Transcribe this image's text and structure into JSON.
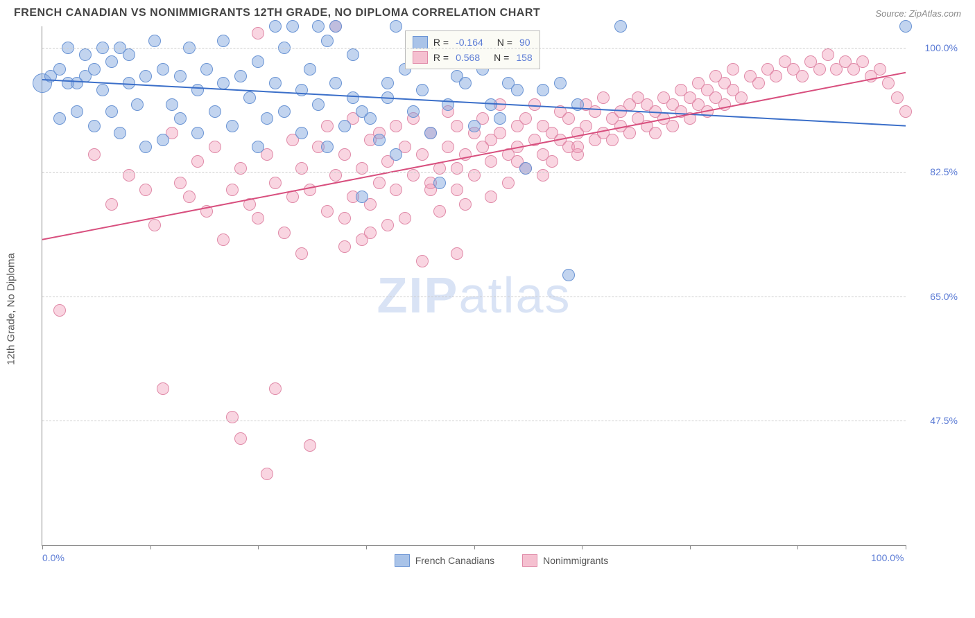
{
  "header": {
    "title": "FRENCH CANADIAN VS NONIMMIGRANTS 12TH GRADE, NO DIPLOMA CORRELATION CHART",
    "source_label": "Source:",
    "source_value": "ZipAtlas.com"
  },
  "chart": {
    "type": "scatter",
    "ylabel": "12th Grade, No Diploma",
    "xlim": [
      0,
      100
    ],
    "ylim": [
      30,
      103
    ],
    "xticks": [
      0,
      12.5,
      25,
      37.5,
      50,
      62.5,
      75,
      87.5,
      100
    ],
    "xtick_labels": {
      "0": "0.0%",
      "100": "100.0%"
    },
    "yticks": [
      47.5,
      65.0,
      82.5,
      100.0
    ],
    "ytick_labels": [
      "47.5%",
      "65.0%",
      "82.5%",
      "100.0%"
    ],
    "background_color": "#ffffff",
    "grid_color": "#cccccc",
    "axis_color": "#888888",
    "series": [
      {
        "name": "French Canadians",
        "color_fill": "rgba(120,160,220,0.45)",
        "color_stroke": "#6a94d4",
        "swatch_fill": "#a9c3e8",
        "swatch_border": "#6a94d4",
        "R": "-0.164",
        "N": "90",
        "marker_radius": 9,
        "trend": {
          "y_at_x0": 95.5,
          "y_at_x100": 89.0,
          "color": "#3b6fc9",
          "width": 2
        },
        "points": [
          [
            0,
            95,
            14
          ],
          [
            1,
            96
          ],
          [
            2,
            97
          ],
          [
            2,
            90
          ],
          [
            3,
            95
          ],
          [
            3,
            100
          ],
          [
            4,
            95
          ],
          [
            4,
            91
          ],
          [
            5,
            96
          ],
          [
            5,
            99
          ],
          [
            6,
            97
          ],
          [
            6,
            89
          ],
          [
            7,
            94
          ],
          [
            7,
            100
          ],
          [
            8,
            98
          ],
          [
            8,
            91
          ],
          [
            9,
            100
          ],
          [
            9,
            88
          ],
          [
            10,
            95
          ],
          [
            10,
            99
          ],
          [
            11,
            92
          ],
          [
            12,
            96
          ],
          [
            12,
            86
          ],
          [
            13,
            101
          ],
          [
            14,
            97
          ],
          [
            14,
            87
          ],
          [
            15,
            92
          ],
          [
            16,
            96
          ],
          [
            16,
            90
          ],
          [
            17,
            100
          ],
          [
            18,
            94
          ],
          [
            18,
            88
          ],
          [
            19,
            97
          ],
          [
            20,
            91
          ],
          [
            21,
            95
          ],
          [
            21,
            101
          ],
          [
            22,
            89
          ],
          [
            23,
            96
          ],
          [
            24,
            93
          ],
          [
            25,
            98
          ],
          [
            25,
            86
          ],
          [
            26,
            90
          ],
          [
            27,
            103
          ],
          [
            27,
            95
          ],
          [
            28,
            100
          ],
          [
            28,
            91
          ],
          [
            29,
            103
          ],
          [
            30,
            94
          ],
          [
            30,
            88
          ],
          [
            31,
            97
          ],
          [
            32,
            103
          ],
          [
            32,
            92
          ],
          [
            33,
            101
          ],
          [
            33,
            86
          ],
          [
            34,
            103
          ],
          [
            34,
            95
          ],
          [
            35,
            89
          ],
          [
            36,
            93
          ],
          [
            36,
            99
          ],
          [
            37,
            91
          ],
          [
            37,
            79
          ],
          [
            38,
            90
          ],
          [
            39,
            87
          ],
          [
            40,
            95
          ],
          [
            40,
            93
          ],
          [
            41,
            103
          ],
          [
            41,
            85
          ],
          [
            42,
            97
          ],
          [
            43,
            91
          ],
          [
            44,
            94
          ],
          [
            45,
            88
          ],
          [
            45,
            100
          ],
          [
            46,
            81
          ],
          [
            47,
            92
          ],
          [
            48,
            96
          ],
          [
            49,
            95
          ],
          [
            50,
            89
          ],
          [
            51,
            97
          ],
          [
            52,
            92
          ],
          [
            53,
            90
          ],
          [
            54,
            95
          ],
          [
            55,
            94
          ],
          [
            56,
            83
          ],
          [
            58,
            94
          ],
          [
            60,
            95
          ],
          [
            61,
            68
          ],
          [
            62,
            92
          ],
          [
            67,
            103
          ],
          [
            100,
            103
          ]
        ]
      },
      {
        "name": "Nonimmigrants",
        "color_fill": "rgba(240,150,180,0.40)",
        "color_stroke": "#e08aa8",
        "swatch_fill": "#f5c0d0",
        "swatch_border": "#e08aa8",
        "R": "0.568",
        "N": "158",
        "marker_radius": 9,
        "trend": {
          "y_at_x0": 73.0,
          "y_at_x100": 96.5,
          "color": "#d84f7e",
          "width": 2
        },
        "points": [
          [
            2,
            63
          ],
          [
            6,
            85
          ],
          [
            8,
            78
          ],
          [
            10,
            82
          ],
          [
            12,
            80
          ],
          [
            13,
            75
          ],
          [
            14,
            52
          ],
          [
            15,
            88
          ],
          [
            16,
            81
          ],
          [
            17,
            79
          ],
          [
            18,
            84
          ],
          [
            19,
            77
          ],
          [
            20,
            86
          ],
          [
            21,
            73
          ],
          [
            22,
            48
          ],
          [
            22,
            80
          ],
          [
            23,
            45
          ],
          [
            23,
            83
          ],
          [
            24,
            78
          ],
          [
            25,
            102
          ],
          [
            25,
            76
          ],
          [
            26,
            40
          ],
          [
            26,
            85
          ],
          [
            27,
            81
          ],
          [
            27,
            52
          ],
          [
            28,
            74
          ],
          [
            29,
            87
          ],
          [
            29,
            79
          ],
          [
            30,
            83
          ],
          [
            30,
            71
          ],
          [
            31,
            80
          ],
          [
            31,
            44
          ],
          [
            32,
            86
          ],
          [
            33,
            77
          ],
          [
            33,
            89
          ],
          [
            34,
            82
          ],
          [
            34,
            103
          ],
          [
            35,
            76
          ],
          [
            35,
            85
          ],
          [
            36,
            79
          ],
          [
            36,
            90
          ],
          [
            37,
            83
          ],
          [
            37,
            73
          ],
          [
            38,
            87
          ],
          [
            38,
            78
          ],
          [
            39,
            81
          ],
          [
            39,
            88
          ],
          [
            40,
            75
          ],
          [
            40,
            84
          ],
          [
            41,
            89
          ],
          [
            41,
            80
          ],
          [
            42,
            76
          ],
          [
            42,
            86
          ],
          [
            43,
            82
          ],
          [
            43,
            90
          ],
          [
            44,
            70
          ],
          [
            44,
            85
          ],
          [
            45,
            80
          ],
          [
            45,
            88
          ],
          [
            46,
            83
          ],
          [
            46,
            77
          ],
          [
            47,
            91
          ],
          [
            47,
            86
          ],
          [
            48,
            80
          ],
          [
            48,
            89
          ],
          [
            49,
            85
          ],
          [
            49,
            78
          ],
          [
            50,
            88
          ],
          [
            50,
            82
          ],
          [
            51,
            86
          ],
          [
            51,
            90
          ],
          [
            52,
            84
          ],
          [
            52,
            79
          ],
          [
            53,
            88
          ],
          [
            53,
            92
          ],
          [
            54,
            85
          ],
          [
            54,
            81
          ],
          [
            55,
            89
          ],
          [
            55,
            86
          ],
          [
            56,
            83
          ],
          [
            56,
            90
          ],
          [
            57,
            87
          ],
          [
            57,
            92
          ],
          [
            58,
            85
          ],
          [
            58,
            89
          ],
          [
            59,
            88
          ],
          [
            59,
            84
          ],
          [
            60,
            91
          ],
          [
            60,
            87
          ],
          [
            61,
            86
          ],
          [
            61,
            90
          ],
          [
            62,
            88
          ],
          [
            62,
            85
          ],
          [
            63,
            92
          ],
          [
            63,
            89
          ],
          [
            64,
            87
          ],
          [
            64,
            91
          ],
          [
            65,
            88
          ],
          [
            65,
            93
          ],
          [
            66,
            90
          ],
          [
            66,
            87
          ],
          [
            67,
            91
          ],
          [
            67,
            89
          ],
          [
            68,
            92
          ],
          [
            68,
            88
          ],
          [
            69,
            90
          ],
          [
            69,
            93
          ],
          [
            70,
            89
          ],
          [
            70,
            92
          ],
          [
            71,
            91
          ],
          [
            71,
            88
          ],
          [
            72,
            93
          ],
          [
            72,
            90
          ],
          [
            73,
            92
          ],
          [
            73,
            89
          ],
          [
            74,
            94
          ],
          [
            74,
            91
          ],
          [
            75,
            93
          ],
          [
            75,
            90
          ],
          [
            76,
            92
          ],
          [
            76,
            95
          ],
          [
            77,
            94
          ],
          [
            77,
            91
          ],
          [
            78,
            93
          ],
          [
            78,
            96
          ],
          [
            79,
            92
          ],
          [
            79,
            95
          ],
          [
            80,
            94
          ],
          [
            80,
            97
          ],
          [
            81,
            93
          ],
          [
            82,
            96
          ],
          [
            83,
            95
          ],
          [
            84,
            97
          ],
          [
            85,
            96
          ],
          [
            86,
            98
          ],
          [
            87,
            97
          ],
          [
            88,
            96
          ],
          [
            89,
            98
          ],
          [
            90,
            97
          ],
          [
            91,
            99
          ],
          [
            92,
            97
          ],
          [
            93,
            98
          ],
          [
            94,
            97
          ],
          [
            95,
            98
          ],
          [
            96,
            96
          ],
          [
            97,
            97
          ],
          [
            98,
            95
          ],
          [
            99,
            93
          ],
          [
            100,
            91
          ],
          [
            45,
            81
          ],
          [
            48,
            83
          ],
          [
            52,
            87
          ],
          [
            55,
            84
          ],
          [
            58,
            82
          ],
          [
            62,
            86
          ],
          [
            35,
            72
          ],
          [
            38,
            74
          ],
          [
            48,
            71
          ]
        ]
      }
    ],
    "legend_box": {
      "r_label": "R =",
      "n_label": "N ="
    },
    "bottom_legend": [
      {
        "label": "French Canadians",
        "swatch_fill": "#a9c3e8",
        "swatch_border": "#6a94d4"
      },
      {
        "label": "Nonimmigrants",
        "swatch_fill": "#f5c0d0",
        "swatch_border": "#e08aa8"
      }
    ],
    "watermark": {
      "t1": "ZIP",
      "t2": "atlas"
    }
  }
}
